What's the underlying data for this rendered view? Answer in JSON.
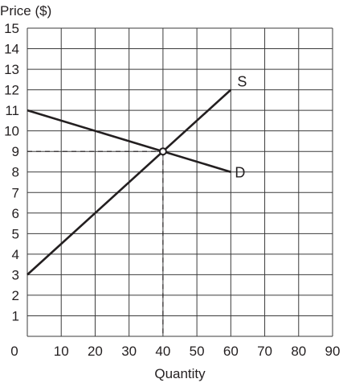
{
  "chart_data": {
    "type": "line",
    "xlabel": "Quantity",
    "ylabel": "Price ($)",
    "xlim": [
      0,
      90
    ],
    "ylim": [
      0,
      15
    ],
    "x_ticks": [
      "0",
      "10",
      "20",
      "30",
      "40",
      "50",
      "60",
      "70",
      "80",
      "90"
    ],
    "y_ticks": [
      "1",
      "2",
      "3",
      "4",
      "5",
      "6",
      "7",
      "8",
      "9",
      "10",
      "11",
      "12",
      "13",
      "14",
      "15"
    ],
    "grid": true,
    "series": [
      {
        "name": "S",
        "x": [
          0,
          60
        ],
        "y": [
          3,
          12
        ]
      },
      {
        "name": "D",
        "x": [
          0,
          60
        ],
        "y": [
          11,
          8
        ]
      }
    ],
    "equilibrium": {
      "x": 40,
      "y": 9
    },
    "colors": {
      "line": "#231f20",
      "grid": "#3b3b3b"
    }
  }
}
